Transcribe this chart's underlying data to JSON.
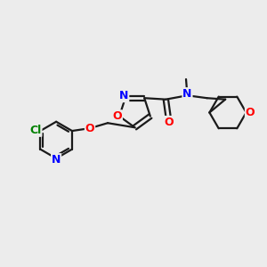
{
  "background_color": "#ececec",
  "atom_colors": {
    "C": "#1a1a1a",
    "N": "#0000ff",
    "O": "#ff0000",
    "Cl": "#008000",
    "H": "#1a1a1a"
  },
  "bond_color": "#1a1a1a",
  "bond_width": 1.6,
  "figsize": [
    3.0,
    3.0
  ],
  "dpi": 100
}
